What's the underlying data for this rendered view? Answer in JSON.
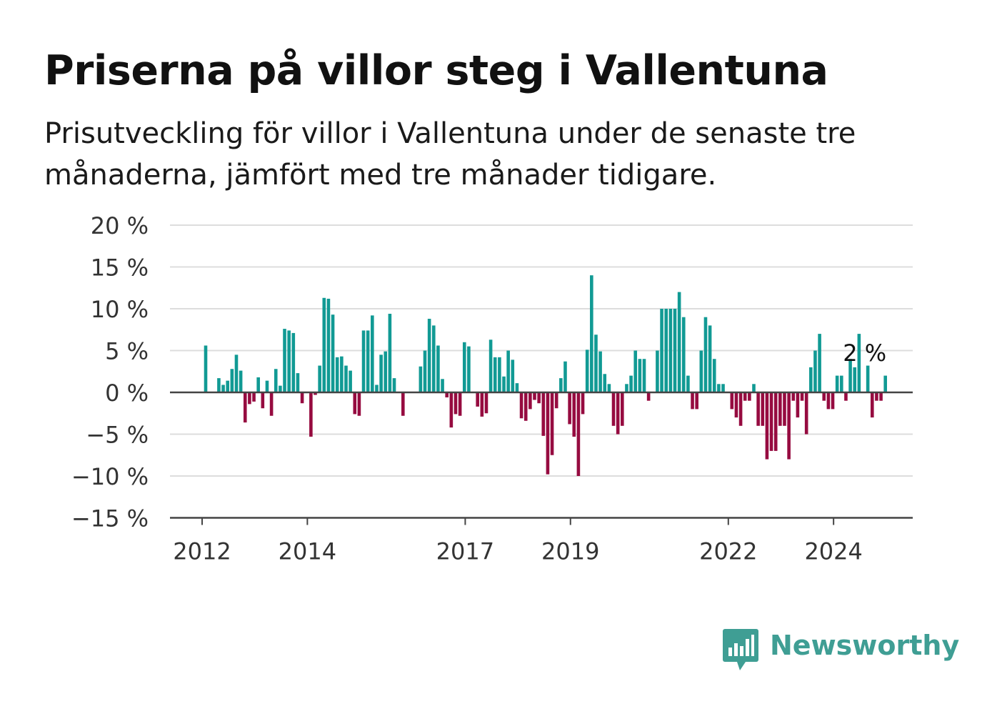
{
  "title": "Priserna på villor steg i Vallentuna",
  "subtitle": "Prisutveckling för villor i Vallentuna under de senaste tre månaderna, jämfört med tre månader tidigare.",
  "brand": {
    "name": "Newsworthy",
    "icon": "newsworthy-logo-icon",
    "color": "#3f9e94"
  },
  "colors": {
    "positive": "#119a94",
    "negative": "#960b40",
    "grid": "#dddddd",
    "axis": "#444444",
    "text": "#333333"
  },
  "chart_data": {
    "type": "bar",
    "ylim": [
      -15,
      20
    ],
    "yticks": [
      -15,
      -10,
      -5,
      0,
      5,
      10,
      15,
      20
    ],
    "ytick_labels": [
      "−15 %",
      "−10 %",
      "−5 %",
      "0 %",
      "5 %",
      "10 %",
      "15 %",
      "20 %"
    ],
    "xticks": [
      2012,
      2014,
      2017,
      2019,
      2022,
      2024
    ],
    "xtick_labels": [
      "2012",
      "2014",
      "2017",
      "2019",
      "2022",
      "2024"
    ],
    "start": "2012-01",
    "end": "2025-01",
    "grid": true,
    "annotation": {
      "text": "2 %",
      "month": "2024-12"
    },
    "values": [
      5.6,
      0,
      0,
      1.7,
      0.9,
      1.4,
      2.8,
      4.5,
      2.6,
      -3.6,
      -1.4,
      -1.1,
      1.8,
      -1.9,
      1.4,
      -2.8,
      2.8,
      0.8,
      7.6,
      7.4,
      7.1,
      2.3,
      -1.3,
      0,
      -5.3,
      -0.3,
      3.2,
      11.3,
      11.2,
      9.3,
      4.2,
      4.3,
      3.2,
      2.6,
      -2.6,
      -2.8,
      7.4,
      7.4,
      9.2,
      0.9,
      4.5,
      4.9,
      9.4,
      1.7,
      0,
      -2.8,
      0,
      0,
      0,
      3.1,
      5.0,
      8.8,
      8.0,
      5.6,
      1.6,
      -0.6,
      -4.2,
      -2.6,
      -2.8,
      6.0,
      5.5,
      0,
      -1.7,
      -2.9,
      -2.5,
      6.3,
      4.2,
      4.2,
      1.9,
      5.0,
      3.9,
      1.1,
      -3.1,
      -3.4,
      -2.0,
      -0.9,
      -1.3,
      -5.2,
      -9.8,
      -7.5,
      -1.9,
      1.7,
      3.7,
      -3.8,
      -5.3,
      -10.0,
      -2.6,
      5.1,
      14.0,
      6.9,
      4.9,
      2.2,
      1.0,
      -4.0,
      -5.0,
      -4.0,
      1.0,
      2.0,
      5.0,
      4.0,
      4.0,
      -1.0,
      0,
      5.0,
      10.0,
      10.0,
      10.0,
      10.0,
      12.0,
      9.0,
      2.0,
      -2.0,
      -2.0,
      5.0,
      9.0,
      8.0,
      4.0,
      1.0,
      1.0,
      0,
      -2.0,
      -3.0,
      -4.0,
      -1.0,
      -1.0,
      1.0,
      -4.0,
      -4.0,
      -8.0,
      -7.0,
      -7.0,
      -4.0,
      -4.0,
      -8.0,
      -1.0,
      -3.0,
      -1.0,
      -5.0,
      3.0,
      5.0,
      7.0,
      -1.0,
      -2.0,
      -2.0,
      2.0,
      2.0,
      -1.0,
      4.0,
      3.0,
      7.0,
      0,
      3.2,
      -3.0,
      -1.0,
      -1.0,
      2.0
    ]
  }
}
